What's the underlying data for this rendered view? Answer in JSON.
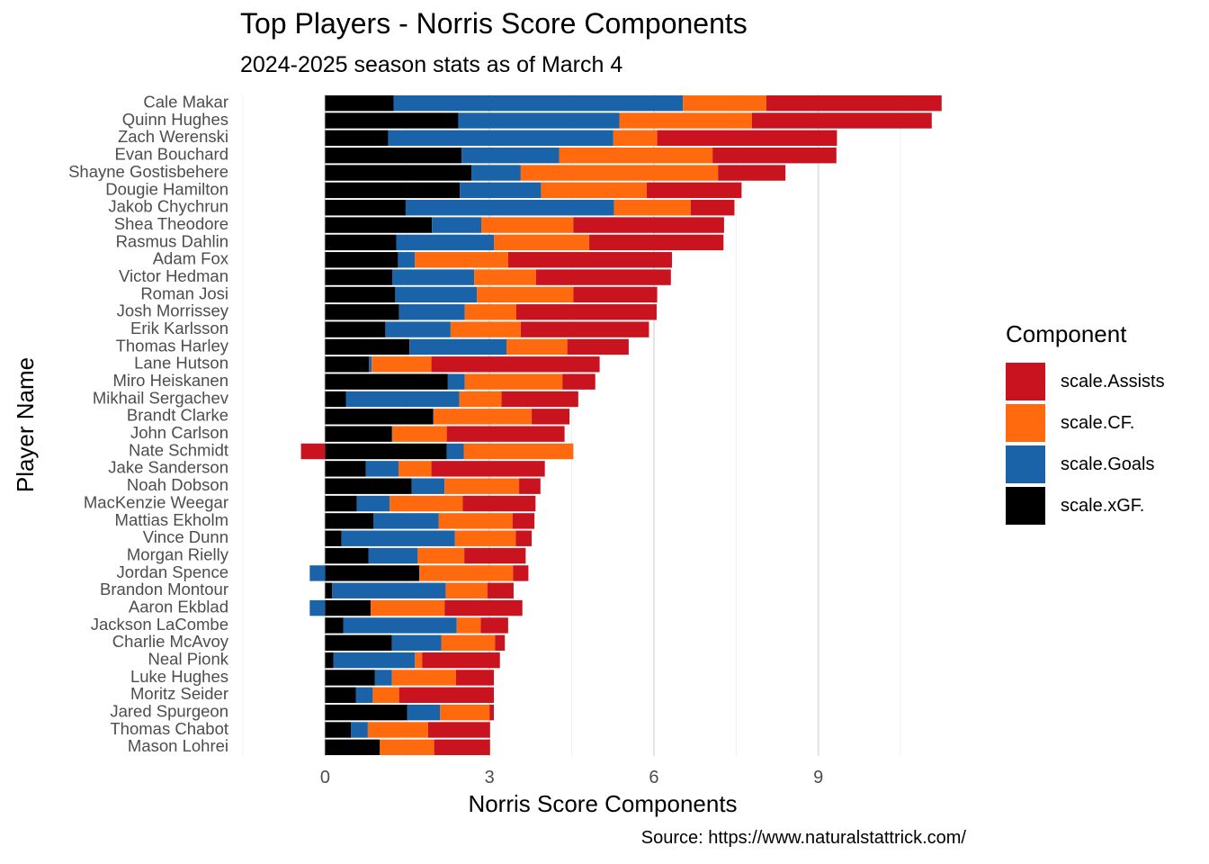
{
  "title": "Top Players - Norris Score Components",
  "subtitle": "2024-2025 season stats as of March 4",
  "caption": "Source: https://www.naturalstattrick.com/",
  "legend": {
    "title": "Component",
    "items": [
      {
        "label": "scale.Assists",
        "color": "#c9141f"
      },
      {
        "label": "scale.CF.",
        "color": "#ff6a0f"
      },
      {
        "label": "scale.Goals",
        "color": "#1b63a8"
      },
      {
        "label": "scale.xGF.",
        "color": "#000000"
      }
    ]
  },
  "chart_data": {
    "type": "bar",
    "orientation": "horizontal",
    "stacked": true,
    "title": "Top Players - Norris Score Components",
    "subtitle": "2024-2025 season stats as of March 4",
    "xlabel": "Norris Score Components",
    "ylabel": "Player Name",
    "xlim": [
      -1.5,
      11.5
    ],
    "xticks": [
      0,
      3,
      6,
      9
    ],
    "xtick_labels": [
      "0",
      "3",
      "6",
      "9"
    ],
    "grid": true,
    "legend_position": "right",
    "categories": [
      "Cale Makar",
      "Quinn Hughes",
      "Zach Werenski",
      "Evan Bouchard",
      "Shayne Gostisbehere",
      "Dougie Hamilton",
      "Jakob Chychrun",
      "Shea Theodore",
      "Rasmus Dahlin",
      "Adam Fox",
      "Victor Hedman",
      "Roman Josi",
      "Josh Morrissey",
      "Erik Karlsson",
      "Thomas Harley",
      "Lane Hutson",
      "Miro Heiskanen",
      "Mikhail Sergachev",
      "Brandt Clarke",
      "John Carlson",
      "Nate Schmidt",
      "Jake Sanderson",
      "Noah Dobson",
      "MacKenzie Weegar",
      "Mattias Ekholm",
      "Vince Dunn",
      "Morgan Rielly",
      "Jordan Spence",
      "Brandon Montour",
      "Aaron Ekblad",
      "Jackson LaCombe",
      "Charlie McAvoy",
      "Neal Pionk",
      "Luke Hughes",
      "Moritz Seider",
      "Jared Spurgeon",
      "Thomas Chabot",
      "Mason Lohrei"
    ],
    "series": [
      {
        "name": "scale.xGF.",
        "color": "#000000",
        "values": [
          1.25,
          2.43,
          1.15,
          2.49,
          2.67,
          2.46,
          1.47,
          1.95,
          1.3,
          1.33,
          1.23,
          1.28,
          1.35,
          1.1,
          1.54,
          0.8,
          2.24,
          0.38,
          1.97,
          1.22,
          2.22,
          0.74,
          1.58,
          0.58,
          0.88,
          0.3,
          0.79,
          1.72,
          0.13,
          0.83,
          0.33,
          1.22,
          0.15,
          0.91,
          0.56,
          1.5,
          0.47,
          1.0
        ]
      },
      {
        "name": "scale.Goals",
        "color": "#1b63a8",
        "values": [
          5.28,
          2.94,
          4.11,
          1.78,
          0.9,
          1.48,
          3.8,
          0.9,
          1.78,
          0.31,
          1.49,
          1.49,
          1.2,
          1.19,
          1.77,
          0.05,
          0.31,
          2.07,
          0.01,
          0.01,
          0.31,
          0.6,
          0.6,
          0.6,
          1.19,
          2.07,
          0.9,
          -0.28,
          2.07,
          -0.28,
          2.07,
          0.9,
          1.49,
          0.31,
          0.31,
          0.6,
          0.31,
          0.0
        ]
      },
      {
        "name": "scale.CF.",
        "color": "#ff6a0f",
        "values": [
          1.52,
          2.42,
          0.8,
          2.8,
          3.6,
          1.93,
          1.4,
          1.68,
          1.74,
          1.7,
          1.13,
          1.76,
          0.94,
          1.28,
          1.11,
          1.09,
          1.78,
          0.77,
          1.79,
          0.99,
          2.0,
          0.6,
          1.36,
          1.33,
          1.35,
          1.11,
          0.85,
          1.71,
          0.76,
          1.35,
          0.44,
          0.98,
          0.13,
          1.17,
          0.48,
          0.9,
          1.1,
          0.99
        ]
      },
      {
        "name": "scale.Assists",
        "color": "#c9141f",
        "values": [
          3.2,
          3.28,
          3.28,
          2.26,
          1.23,
          1.73,
          0.8,
          2.75,
          2.45,
          2.99,
          2.46,
          1.53,
          2.56,
          2.34,
          1.12,
          3.07,
          0.6,
          1.4,
          0.69,
          2.15,
          -0.44,
          2.07,
          0.39,
          1.33,
          0.4,
          0.29,
          1.12,
          0.28,
          0.48,
          1.42,
          0.5,
          0.18,
          1.42,
          0.69,
          1.73,
          0.08,
          1.13,
          1.02
        ]
      }
    ]
  }
}
